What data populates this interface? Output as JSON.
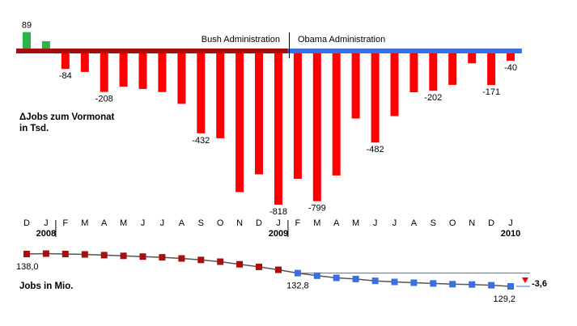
{
  "chart_data": [
    {
      "type": "bar",
      "title": "ΔJobs zum Vormonat",
      "unit_label": "in Tsd.",
      "categories": [
        "D",
        "J",
        "F",
        "M",
        "A",
        "M",
        "J",
        "J",
        "A",
        "S",
        "O",
        "N",
        "D",
        "J",
        "F",
        "M",
        "A",
        "M",
        "J",
        "J",
        "A",
        "S",
        "O",
        "N",
        "D",
        "J"
      ],
      "year_labels": [
        {
          "category_index": 1,
          "label": "2008"
        },
        {
          "category_index": 13,
          "label": "2009"
        },
        {
          "category_index": 25,
          "label": "2010"
        }
      ],
      "values": [
        89,
        40,
        -84,
        -100,
        -208,
        -180,
        -192,
        -209,
        -273,
        -432,
        -459,
        -750,
        -654,
        -818,
        -678,
        -799,
        -660,
        -352,
        -482,
        -339,
        -210,
        -202,
        -170,
        -54,
        -171,
        -40
      ],
      "data_labels": [
        {
          "index": 0,
          "text": "89"
        },
        {
          "index": 2,
          "text": "-84"
        },
        {
          "index": 4,
          "text": "-208"
        },
        {
          "index": 9,
          "text": "-432"
        },
        {
          "index": 13,
          "text": "-818"
        },
        {
          "index": 15,
          "text": "-799"
        },
        {
          "index": 18,
          "text": "-482"
        },
        {
          "index": 21,
          "text": "-202"
        },
        {
          "index": 24,
          "text": "-171"
        },
        {
          "index": 25,
          "text": "-40"
        }
      ],
      "periods": [
        {
          "label": "Bush Administration",
          "from_index": 0,
          "to_index": 13,
          "color": "#a50f0f"
        },
        {
          "label": "Obama Administration",
          "from_index": 14,
          "to_index": 25,
          "color": "#3b6fe0"
        }
      ],
      "colors": {
        "positive": "#2db34a",
        "negative": "#ff0000"
      }
    },
    {
      "type": "line",
      "title": "Jobs in Mio.",
      "values": [
        138.0,
        138.1,
        138.0,
        137.9,
        137.7,
        137.5,
        137.3,
        137.1,
        136.8,
        136.4,
        135.9,
        135.2,
        134.5,
        133.7,
        132.8,
        132.1,
        131.5,
        131.2,
        130.7,
        130.4,
        130.2,
        130.0,
        129.8,
        129.7,
        129.5,
        129.2
      ],
      "point_labels": [
        {
          "index": 0,
          "text": "138,0"
        },
        {
          "index": 14,
          "text": "132,8"
        },
        {
          "index": 25,
          "text": "129,2"
        }
      ],
      "delta_label": "-3,6",
      "colors": {
        "bush": "#a50f0f",
        "obama": "#3b6fe0",
        "line": "#555555",
        "delta_marker": "#ff0000"
      }
    }
  ]
}
